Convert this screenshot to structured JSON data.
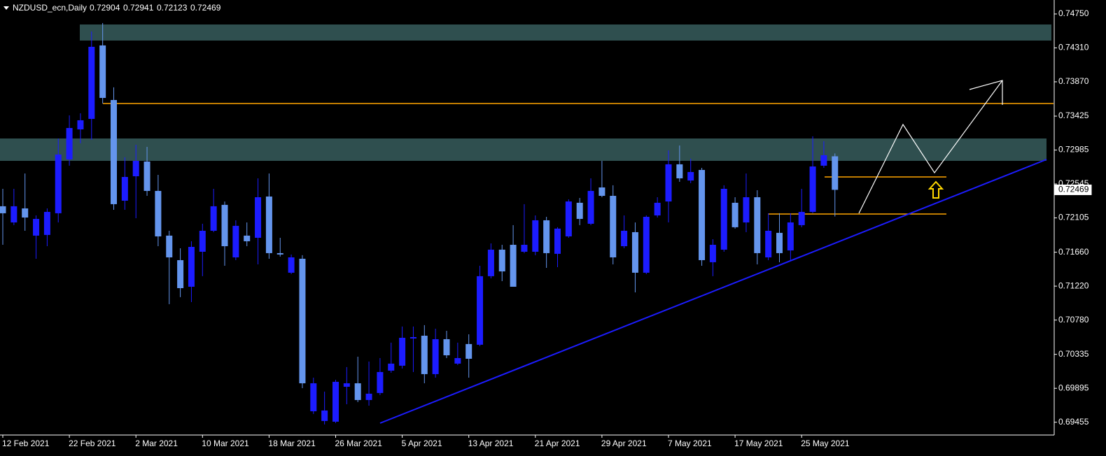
{
  "chart_data": {
    "type": "candlestick",
    "symbol_label": "NZDUSD_ecn,Daily",
    "up_color": "#1c1cff",
    "down_color": "#6495ed",
    "categories": [
      "12 Feb 2021",
      null,
      null,
      null,
      null,
      null,
      "22 Feb 2021",
      null,
      null,
      null,
      null,
      null,
      "2 Mar 2021",
      null,
      null,
      null,
      null,
      null,
      "10 Mar 2021",
      null,
      null,
      null,
      null,
      null,
      "18 Mar 2021",
      null,
      null,
      null,
      null,
      null,
      "26 Mar 2021",
      null,
      null,
      null,
      null,
      null,
      "5 Apr 2021",
      null,
      null,
      null,
      null,
      null,
      "13 Apr 2021",
      null,
      null,
      null,
      null,
      null,
      "21 Apr 2021",
      null,
      null,
      null,
      null,
      null,
      "29 Apr 2021",
      null,
      null,
      null,
      null,
      null,
      "7 May 2021",
      null,
      null,
      null,
      null,
      null,
      "17 May 2021",
      null,
      null,
      null,
      null,
      null,
      "25 May 2021",
      null,
      null,
      null
    ],
    "open": [
      0.72256,
      0.72046,
      0.72228,
      0.71875,
      0.71884,
      0.72165,
      0.72863,
      0.73253,
      0.73389,
      0.74342,
      0.73634,
      0.72328,
      0.72645,
      0.72836,
      0.72455,
      0.71875,
      0.71557,
      0.71212,
      0.71666,
      0.71938,
      0.72274,
      0.71593,
      0.71875,
      0.71847,
      0.72382,
      0.71648,
      0.71394,
      0.71575,
      0.69597,
      0.69471,
      0.69462,
      0.69915,
      0.6996,
      0.69743,
      0.69834,
      0.70124,
      0.70188,
      0.70541,
      0.70577,
      0.70079,
      0.70532,
      0.70215,
      0.70469,
      0.7046,
      0.71349,
      0.71693,
      0.71756,
      0.71666,
      0.71666,
      0.72074,
      0.71639,
      0.71865,
      0.72301,
      0.72029,
      0.725,
      0.72391,
      0.71738,
      0.7192,
      0.71394,
      0.72137,
      0.72318,
      0.728,
      0.7259,
      0.72727,
      0.7153,
      0.71693,
      0.72301,
      0.72046,
      0.72373,
      0.71593,
      0.71911,
      0.71683,
      0.72011,
      0.72183,
      0.72782,
      0.72904
    ],
    "high": [
      0.72482,
      0.72482,
      0.72681,
      0.72137,
      0.72228,
      0.73135,
      0.73435,
      0.73462,
      0.74523,
      0.74632,
      0.73798,
      0.72891,
      0.73054,
      0.73026,
      0.72663,
      0.71938,
      0.71711,
      0.71802,
      0.72029,
      0.72482,
      0.72318,
      0.72074,
      0.72046,
      0.72618,
      0.72681,
      0.71847,
      0.7163,
      0.71621,
      0.70033,
      0.69852,
      0.70006,
      0.7017,
      0.70305,
      0.70242,
      0.70287,
      0.70487,
      0.70696,
      0.70696,
      0.70714,
      0.70668,
      0.70641,
      0.70487,
      0.70595,
      0.71484,
      0.71774,
      0.71756,
      0.72011,
      0.72283,
      0.72137,
      0.72119,
      0.71984,
      0.72346,
      0.72364,
      0.72618,
      0.72845,
      0.72528,
      0.72137,
      0.72046,
      0.72137,
      0.72373,
      0.72981,
      0.73044,
      0.72873,
      0.72754,
      0.71829,
      0.72528,
      0.72373,
      0.72681,
      0.72464,
      0.72165,
      0.72165,
      0.72165,
      0.72482,
      0.73163,
      0.73099,
      0.72941
    ],
    "low": [
      0.71756,
      0.72011,
      0.71938,
      0.71575,
      0.71738,
      0.72046,
      0.72782,
      0.73072,
      0.73117,
      0.73588,
      0.7221,
      0.7221,
      0.72101,
      0.72391,
      0.71738,
      0.70986,
      0.71077,
      0.71013,
      0.71349,
      0.7192,
      0.71484,
      0.71557,
      0.71738,
      0.71502,
      0.71575,
      0.71603,
      0.71376,
      0.69897,
      0.69562,
      0.69426,
      0.69444,
      0.69688,
      0.69716,
      0.6967,
      0.69807,
      0.70097,
      0.70152,
      0.70106,
      0.6996,
      0.70033,
      0.70287,
      0.70197,
      0.70033,
      0.70442,
      0.71321,
      0.71285,
      0.71212,
      0.71648,
      0.71621,
      0.71457,
      0.71466,
      0.71847,
      0.72011,
      0.72011,
      0.72373,
      0.71502,
      0.71711,
      0.71139,
      0.71376,
      0.7211,
      0.72046,
      0.72573,
      0.72555,
      0.71484,
      0.71349,
      0.71666,
      0.71966,
      0.7192,
      0.71502,
      0.71557,
      0.7153,
      0.71557,
      0.71984,
      0.72165,
      0.72754,
      0.72123
    ],
    "close": [
      0.72165,
      0.72256,
      0.7211,
      0.72092,
      0.72183,
      0.72927,
      0.73271,
      0.73371,
      0.74324,
      0.73661,
      0.72283,
      0.72636,
      0.72845,
      0.72455,
      0.71865,
      0.71593,
      0.71194,
      0.71729,
      0.71938,
      0.72256,
      0.71738,
      0.72002,
      0.71802,
      0.72373,
      0.71648,
      0.7163,
      0.71593,
      0.6996,
      0.6996,
      0.69607,
      0.69979,
      0.6996,
      0.69743,
      0.69825,
      0.70106,
      0.70215,
      0.7055,
      0.70559,
      0.70079,
      0.70532,
      0.70323,
      0.70287,
      0.70278,
      0.71349,
      0.71693,
      0.71411,
      0.71212,
      0.71756,
      0.72074,
      0.71648,
      0.71966,
      0.72318,
      0.72092,
      0.72455,
      0.72391,
      0.71593,
      0.71938,
      0.71394,
      0.72119,
      0.72301,
      0.728,
      0.72618,
      0.727,
      0.71557,
      0.71756,
      0.72482,
      0.71984,
      0.72373,
      0.71648,
      0.71938,
      0.71648,
      0.72046,
      0.72183,
      0.72772,
      0.72918,
      0.72469
    ],
    "ylim": [
      0.69289,
      0.74931
    ],
    "yticks": [
      {
        "value": 0.7475,
        "label": "0.74750"
      },
      {
        "value": 0.7431,
        "label": "0.74310"
      },
      {
        "value": 0.7387,
        "label": "0.73870"
      },
      0.73425,
      0.72985,
      0.72545,
      0.72105,
      {
        "value": 0.7166,
        "label": "0.71660"
      },
      {
        "value": 0.7122,
        "label": "0.71220"
      },
      {
        "value": 0.7078,
        "label": "0.70780"
      },
      0.70335,
      0.69895,
      0.69455
    ],
    "grid": false
  }
}
